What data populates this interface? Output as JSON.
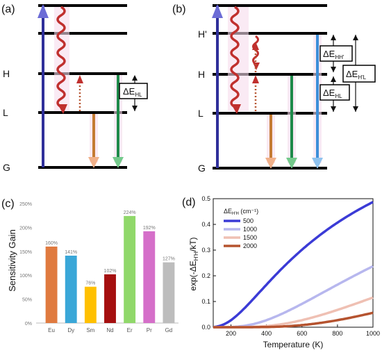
{
  "panels": {
    "a": {
      "label": "(a)",
      "levels": [
        "G",
        "L",
        "H"
      ],
      "gap_box": {
        "main": "ΔE",
        "sub": "HL"
      }
    },
    "b": {
      "label": "(b)",
      "levels": [
        "G",
        "L",
        "H",
        "H'"
      ],
      "gap_boxes": [
        {
          "main": "ΔE",
          "sub": "HH'"
        },
        {
          "main": "ΔE",
          "sub": "HL"
        },
        {
          "main": "ΔE",
          "sub": "H'L"
        }
      ]
    },
    "c": {
      "label": "(c)"
    },
    "d": {
      "label": "(d)"
    }
  },
  "chart_data": [
    {
      "type": "bar",
      "ylabel": "Sensitivity Gain",
      "categories": [
        "Eu",
        "Dy",
        "Sm",
        "Nd",
        "Er",
        "Pr",
        "Gd"
      ],
      "values": [
        160,
        141,
        76,
        102,
        224,
        192,
        127
      ],
      "value_labels": [
        "160%",
        "141%",
        "76%",
        "102%",
        "224%",
        "192%",
        "127%"
      ],
      "colors": [
        "#e07a3f",
        "#3aa7d8",
        "#ffc000",
        "#a50f0f",
        "#90d86a",
        "#d56fc9",
        "#bdbdbd"
      ],
      "ylim": [
        0,
        250
      ],
      "yticks": [
        "0%",
        "50%",
        "100%",
        "150%",
        "200%",
        "250%"
      ]
    },
    {
      "type": "line",
      "xlabel": "Temperature (K)",
      "ylabel": {
        "main": "exp(-ΔE",
        "sub": "H'H",
        "tail": "/kT)"
      },
      "xlim": [
        100,
        1000
      ],
      "ylim": [
        0,
        0.5
      ],
      "xticks": [
        "200",
        "400",
        "600",
        "800",
        "1000"
      ],
      "yticks": [
        "0.0",
        "0.1",
        "0.2",
        "0.3",
        "0.4",
        "0.5"
      ],
      "legend_title": {
        "main": "ΔE",
        "sub": "H'H",
        "tail": " (cm⁻¹)"
      },
      "legend_placement": "top-left",
      "k_cm": 0.695,
      "series": [
        {
          "name": "500",
          "deltaE": 500,
          "color": "#3b3bd6"
        },
        {
          "name": "1000",
          "deltaE": 1000,
          "color": "#b7b7ee"
        },
        {
          "name": "1500",
          "deltaE": 1500,
          "color": "#efc0b3"
        },
        {
          "name": "2000",
          "deltaE": 2000,
          "color": "#b5532f"
        }
      ]
    }
  ]
}
